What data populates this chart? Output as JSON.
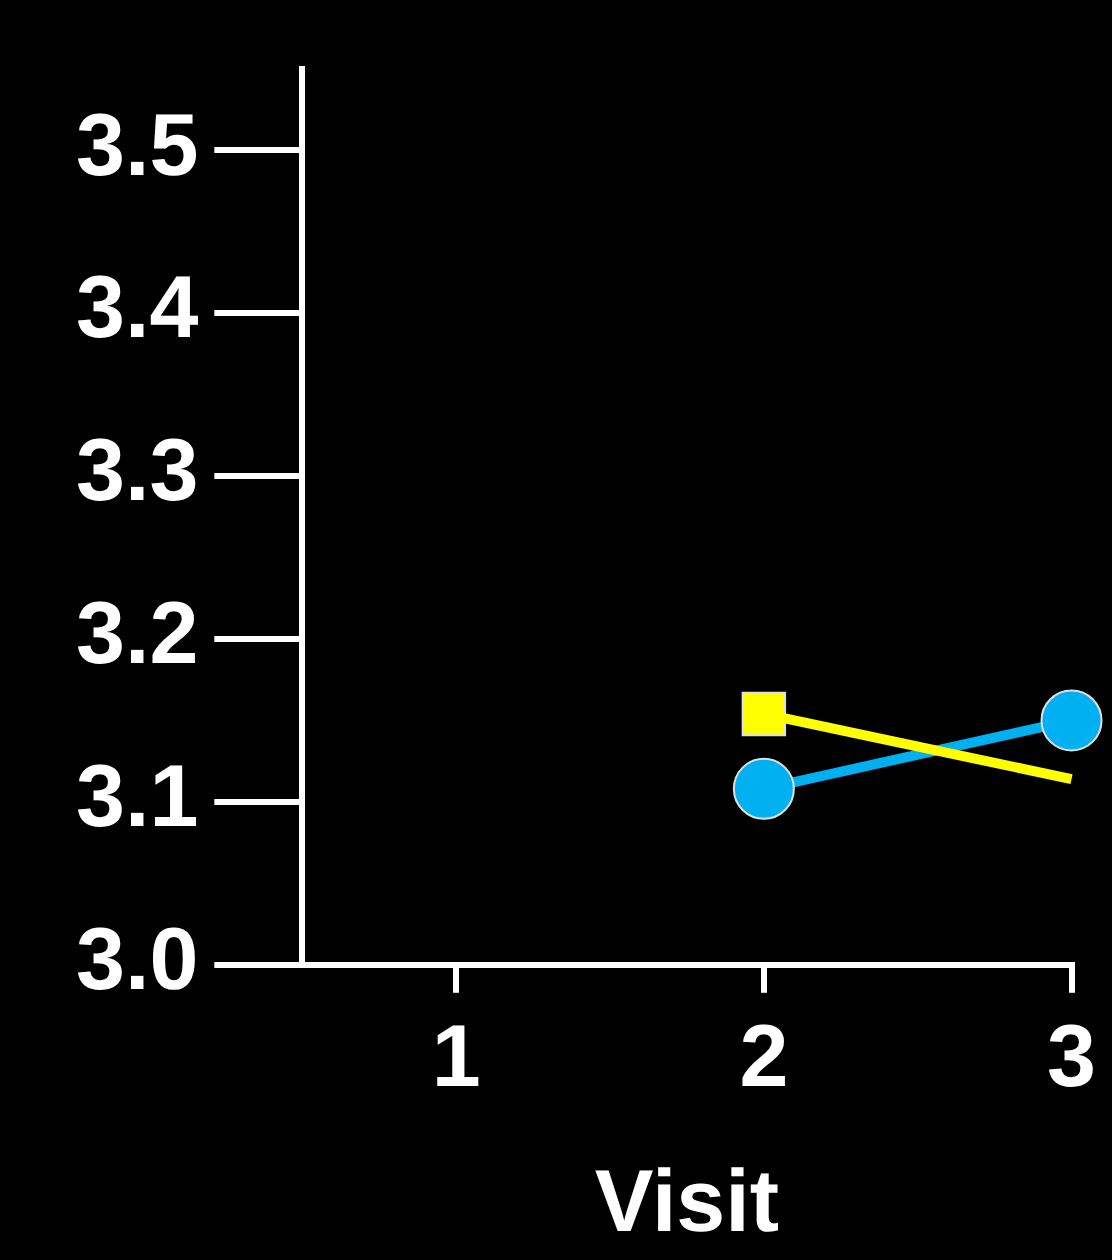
{
  "chart_data": {
    "type": "line",
    "xlabel": "Visit",
    "x": [
      2,
      3
    ],
    "xlim": [
      0.5,
      3
    ],
    "xticks": [
      1,
      2,
      3
    ],
    "ylim": [
      3.0,
      3.55
    ],
    "yticks": [
      {
        "value": 3.0,
        "label": "3.0"
      },
      {
        "value": 3.1,
        "label": "3.1"
      },
      {
        "value": 3.2,
        "label": "3.2"
      },
      {
        "value": 3.3,
        "label": "3.3"
      },
      {
        "value": 3.4,
        "label": "3.4"
      },
      {
        "value": 3.5,
        "label": "3.5"
      }
    ],
    "grid": false,
    "legend": false,
    "series": [
      {
        "color": "#ffff00",
        "marker": "none",
        "values": [
          3.154,
          3.114
        ]
      },
      {
        "color": "#00b0f0",
        "marker": "circle",
        "values": [
          3.108,
          3.15
        ]
      },
      {
        "type": "scatter",
        "color": "#ffff00",
        "marker": "square",
        "x": [
          2
        ],
        "values": [
          3.154
        ]
      }
    ]
  }
}
